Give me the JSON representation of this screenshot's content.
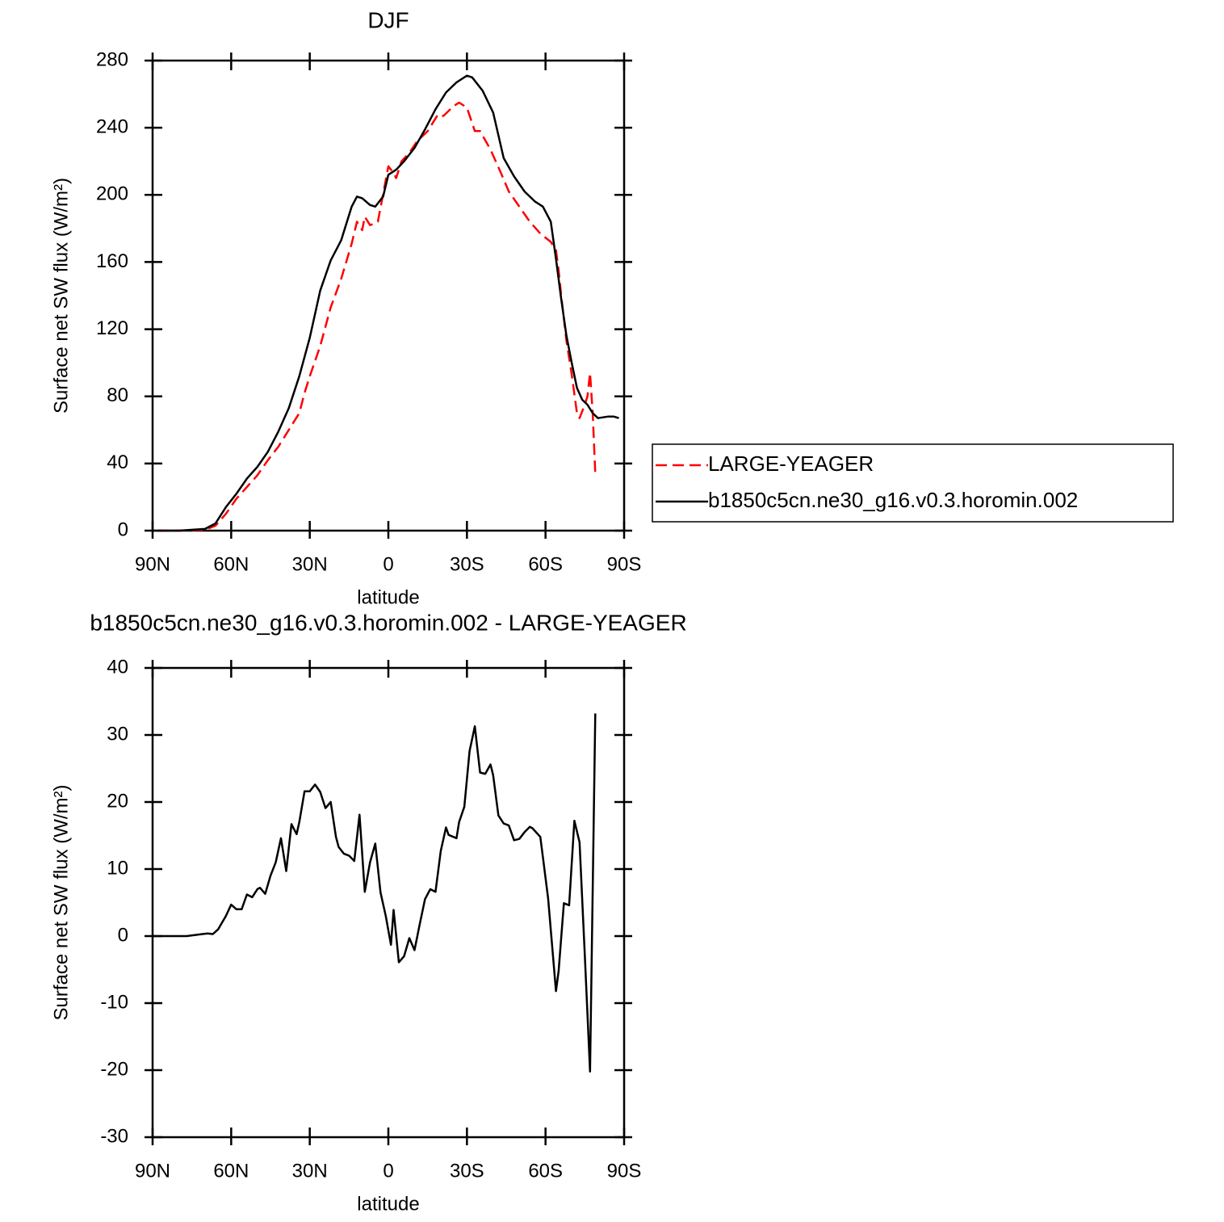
{
  "chart_data": [
    {
      "type": "line",
      "title": "DJF",
      "x_label": "latitude",
      "y_label": "Surface net SW flux (W/m²)",
      "xlim": [
        90,
        -90
      ],
      "xticks": [
        {
          "value": 90,
          "label": "90N"
        },
        {
          "value": 60,
          "label": "60N"
        },
        {
          "value": 30,
          "label": "30N"
        },
        0,
        {
          "value": -30,
          "label": "30S"
        },
        {
          "value": -60,
          "label": "60S"
        },
        {
          "value": -90,
          "label": "90S"
        }
      ],
      "ylim": [
        0,
        280
      ],
      "yticks": [
        0,
        40,
        80,
        120,
        160,
        200,
        240,
        280
      ],
      "legend_position": "right",
      "series": [
        {
          "name": "LARGE-YEAGER",
          "color": "#ff0000",
          "dash": true,
          "x": [
            88,
            80,
            70,
            66,
            62,
            58,
            54,
            50,
            46,
            42,
            38,
            34,
            32,
            30,
            26,
            22,
            18,
            14,
            12,
            10,
            9,
            7,
            5,
            4,
            0,
            -2,
            -3,
            -5,
            -8,
            -11,
            -15,
            -19,
            -21,
            -25,
            -27,
            -30,
            -33,
            -35,
            -39,
            -43,
            -46,
            -50,
            -54,
            -58,
            -62,
            -64,
            -65,
            -66,
            -68,
            -70,
            -72,
            -73,
            -75,
            -76,
            -77,
            -78,
            -79
          ],
          "values": [
            0,
            0,
            0.5,
            3,
            10,
            19,
            26,
            33,
            42,
            50,
            60,
            70,
            82,
            92,
            110,
            133,
            150,
            171,
            184,
            179,
            187,
            182,
            183,
            184,
            217,
            213,
            210,
            220,
            225,
            232,
            238,
            248,
            247,
            253,
            255,
            252,
            238,
            238,
            227,
            213,
            202,
            193,
            184,
            177,
            172,
            167,
            155,
            140,
            113,
            93,
            70,
            67,
            75,
            80,
            94,
            70,
            34
          ]
        },
        {
          "name": "b1850c5cn.ne30_g16.v0.3.horomin.002",
          "color": "#000000",
          "dash": false,
          "x": [
            88,
            80,
            70,
            66,
            62,
            58,
            54,
            50,
            46,
            42,
            38,
            34,
            30,
            26,
            22,
            18,
            14,
            12,
            10,
            7,
            5,
            2,
            0,
            -3,
            -6,
            -10,
            -14,
            -18,
            -22,
            -26,
            -30,
            -32,
            -36,
            -40,
            -44,
            -48,
            -52,
            -56,
            -59,
            -62,
            -64,
            -66,
            -68,
            -70,
            -72,
            -74,
            -76,
            -78,
            -80,
            -84,
            -86,
            -88
          ],
          "values": [
            0,
            0,
            1,
            4.3,
            14,
            22,
            31,
            38,
            47,
            59,
            73,
            92,
            115,
            143,
            161,
            173,
            193,
            199,
            198,
            194,
            193,
            199,
            212,
            215,
            220,
            228,
            239,
            251,
            261,
            267,
            271,
            270,
            262,
            249,
            222,
            211,
            202,
            196,
            193,
            184,
            162,
            138,
            116,
            100,
            85,
            78,
            75,
            70,
            67,
            68,
            68,
            67
          ]
        }
      ]
    },
    {
      "type": "line",
      "title": "b1850c5cn.ne30_g16.v0.3.horomin.002 - LARGE-YEAGER",
      "x_label": "latitude",
      "y_label": "Surface net SW flux (W/m²)",
      "xlim": [
        90,
        -90
      ],
      "xticks": [
        {
          "value": 90,
          "label": "90N"
        },
        {
          "value": 60,
          "label": "60N"
        },
        {
          "value": 30,
          "label": "30N"
        },
        0,
        {
          "value": -30,
          "label": "30S"
        },
        {
          "value": -60,
          "label": "60S"
        },
        {
          "value": -90,
          "label": "90S"
        }
      ],
      "ylim": [
        -30,
        40
      ],
      "yticks": [
        -30,
        -20,
        -10,
        0,
        10,
        20,
        30,
        40
      ],
      "series": [
        {
          "color": "#000000",
          "dash": false,
          "x": [
            90,
            77,
            71,
            69,
            67,
            65,
            62,
            60,
            58,
            56,
            54,
            52,
            50,
            49,
            47,
            45,
            43,
            41,
            39,
            37,
            35,
            34,
            32,
            30,
            28,
            26,
            24,
            22,
            20,
            19,
            17,
            15,
            13,
            11,
            9,
            7,
            5,
            3,
            1,
            -1,
            -2,
            -4,
            -6,
            -8,
            -10,
            -12,
            -14,
            -16,
            -18,
            -20,
            -22,
            -23,
            -26,
            -27,
            -29,
            -31,
            -33,
            -35,
            -37,
            -39,
            -40,
            -42,
            -44,
            -46,
            -48,
            -50,
            -52,
            -54,
            -55,
            -58,
            -59,
            -61,
            -64,
            -65,
            -67,
            -69,
            -71,
            -73,
            -75,
            -77,
            -79
          ],
          "values": [
            0,
            0,
            0.3,
            0.4,
            0.3,
            1,
            3,
            4.7,
            4,
            4,
            6.2,
            5.8,
            7,
            7.2,
            6.3,
            9,
            11,
            14.6,
            9.7,
            16.7,
            15.2,
            17,
            21.6,
            21.6,
            22.6,
            21.5,
            19.1,
            20,
            14.8,
            13.3,
            12.3,
            12,
            11.2,
            18.1,
            6.6,
            11,
            13.8,
            6.5,
            3,
            -1.3,
            3.9,
            -3.9,
            -3,
            -0.3,
            -2.1,
            1.8,
            5.5,
            7,
            6.6,
            12.7,
            16.2,
            15.1,
            14.6,
            17,
            19.3,
            27.6,
            31.3,
            24.4,
            24.2,
            25.6,
            24,
            18,
            16.8,
            16.5,
            14.3,
            14.5,
            15.5,
            16.3,
            16.1,
            14.8,
            11.8,
            5.6,
            -8.2,
            -5.2,
            4.9,
            4.6,
            17.2,
            14,
            -2.8,
            -20.2,
            33.2
          ]
        }
      ]
    }
  ]
}
